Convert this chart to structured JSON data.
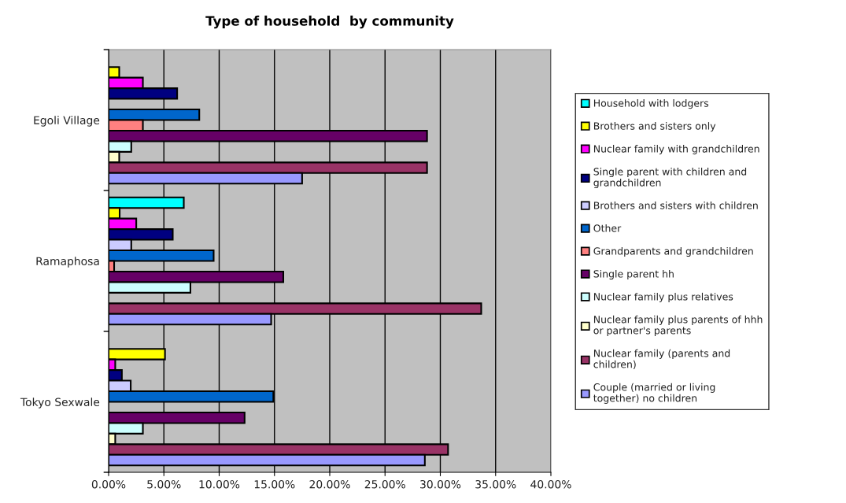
{
  "chart_data": {
    "type": "bar",
    "orientation": "horizontal",
    "title": "Type of household  by community",
    "categories": [
      "Egoli Village",
      "Ramaphosa",
      "Tokyo Sexwale"
    ],
    "series": [
      {
        "name": "Household with lodgers",
        "color": "#00ffff",
        "values": [
          null,
          6.8,
          null
        ]
      },
      {
        "name": "Brothers and sisters only",
        "color": "#ffff00",
        "values": [
          0.96,
          1.0,
          5.1
        ]
      },
      {
        "name": "Nuclear family with grandchildren",
        "color": "#ff00ff",
        "values": [
          3.1,
          2.5,
          0.6
        ]
      },
      {
        "name": "Single parent with children and grandchildren",
        "color": "#000080",
        "values": [
          6.2,
          5.8,
          1.2
        ]
      },
      {
        "name": "Brothers and sisters with children",
        "color": "#ccccff",
        "values": [
          null,
          2.05,
          2.0
        ]
      },
      {
        "name": "Other",
        "color": "#0066cc",
        "values": [
          8.2,
          9.5,
          14.9
        ]
      },
      {
        "name": "Grandparents and grandchildren",
        "color": "#ff8080",
        "values": [
          3.1,
          0.5,
          null
        ]
      },
      {
        "name": "Single parent hh",
        "color": "#660066",
        "values": [
          28.8,
          15.8,
          12.3
        ]
      },
      {
        "name": "Nuclear family plus relatives",
        "color": "#ccffff",
        "values": [
          2.05,
          7.4,
          3.1
        ]
      },
      {
        "name": "Nuclear family plus parents of hhh or partner's parents",
        "color": "#ffffcc",
        "values": [
          0.96,
          null,
          0.6
        ]
      },
      {
        "name": "Nuclear family (parents  and children)",
        "color": "#993366",
        "values": [
          28.8,
          33.7,
          30.7
        ]
      },
      {
        "name": "Couple (married or living together) no children",
        "color": "#9999ff",
        "values": [
          17.5,
          14.7,
          28.6
        ]
      }
    ],
    "xlim": [
      0,
      40
    ],
    "xticks": [
      {
        "value": 0,
        "label": "0.00%"
      },
      {
        "value": 5,
        "label": "5.00%"
      },
      {
        "value": 10,
        "label": "10.00%"
      },
      {
        "value": 15,
        "label": "15.00%"
      },
      {
        "value": 20,
        "label": "20.00%"
      },
      {
        "value": 25,
        "label": "25.00%"
      },
      {
        "value": 30,
        "label": "30.00%"
      },
      {
        "value": 35,
        "label": "35.00%"
      },
      {
        "value": 40,
        "label": "40.00%"
      }
    ],
    "grid": "x",
    "legend": "right"
  }
}
